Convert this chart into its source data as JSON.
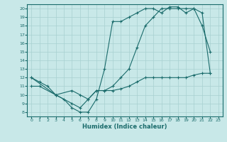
{
  "xlabel": "Humidex (Indice chaleur)",
  "bg_color": "#c8e8e8",
  "line_color": "#1a6b6b",
  "xlim": [
    -0.5,
    23.5
  ],
  "ylim": [
    7.5,
    20.5
  ],
  "xticks": [
    0,
    1,
    2,
    3,
    4,
    5,
    6,
    7,
    8,
    9,
    10,
    11,
    12,
    13,
    14,
    15,
    16,
    17,
    18,
    19,
    20,
    21,
    22,
    23
  ],
  "yticks": [
    8,
    9,
    10,
    11,
    12,
    13,
    14,
    15,
    16,
    17,
    18,
    19,
    20
  ],
  "line1_x": [
    0,
    1,
    2,
    3,
    4,
    5,
    6,
    7,
    8,
    9,
    10,
    11,
    12,
    13,
    14,
    15,
    16,
    17,
    18,
    19,
    20,
    21,
    22
  ],
  "line1_y": [
    12,
    11.5,
    11,
    10,
    9.5,
    8.5,
    8,
    8,
    9.5,
    13,
    18.5,
    18.5,
    19,
    19.5,
    20,
    20,
    19.5,
    20.2,
    20.2,
    19.5,
    20,
    18,
    15
  ],
  "line2_x": [
    0,
    3,
    5,
    6,
    7,
    8,
    9,
    10,
    11,
    12,
    13,
    14,
    15,
    16,
    17,
    18,
    19,
    20,
    21,
    22
  ],
  "line2_y": [
    12,
    10,
    9,
    8.5,
    9.5,
    10.5,
    10.5,
    11,
    12,
    13,
    15.5,
    18,
    19,
    20,
    20,
    20,
    20,
    20,
    19.5,
    12.5
  ],
  "line3_x": [
    0,
    1,
    3,
    5,
    6,
    7,
    8,
    9,
    10,
    11,
    12,
    13,
    14,
    15,
    16,
    17,
    18,
    19,
    20,
    21,
    22
  ],
  "line3_y": [
    11,
    11,
    10,
    10.5,
    10,
    9.5,
    10.5,
    10.5,
    10.5,
    10.7,
    11,
    11.5,
    12,
    12,
    12,
    12,
    12,
    12,
    12.3,
    12.5,
    12.5
  ],
  "grid_color": "#a8d0d0",
  "marker": "+"
}
